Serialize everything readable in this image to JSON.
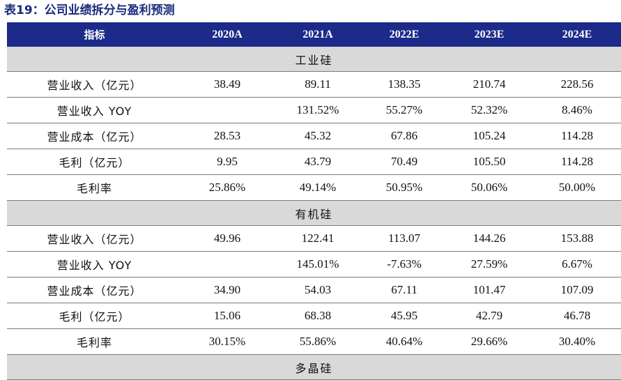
{
  "title": "表19：公司业绩拆分与盈利预测",
  "header": [
    "指标",
    "2020A",
    "2021A",
    "2022E",
    "2023E",
    "2024E"
  ],
  "sections": [
    {
      "name": "工业硅",
      "rows": [
        {
          "label": "营业收入（亿元）",
          "values": [
            "38.49",
            "89.11",
            "138.35",
            "210.74",
            "228.56"
          ]
        },
        {
          "label": "营业收入 YOY",
          "values": [
            "",
            "131.52%",
            "55.27%",
            "52.32%",
            "8.46%"
          ]
        },
        {
          "label": "营业成本（亿元）",
          "values": [
            "28.53",
            "45.32",
            "67.86",
            "105.24",
            "114.28"
          ]
        },
        {
          "label": "毛利（亿元）",
          "values": [
            "9.95",
            "43.79",
            "70.49",
            "105.50",
            "114.28"
          ]
        },
        {
          "label": "毛利率",
          "values": [
            "25.86%",
            "49.14%",
            "50.95%",
            "50.06%",
            "50.00%"
          ]
        }
      ]
    },
    {
      "name": "有机硅",
      "rows": [
        {
          "label": "营业收入（亿元）",
          "values": [
            "49.96",
            "122.41",
            "113.07",
            "144.26",
            "153.88"
          ]
        },
        {
          "label": "营业收入 YOY",
          "values": [
            "",
            "145.01%",
            "-7.63%",
            "27.59%",
            "6.67%"
          ]
        },
        {
          "label": "营业成本（亿元）",
          "values": [
            "34.90",
            "54.03",
            "67.11",
            "101.47",
            "107.09"
          ]
        },
        {
          "label": "毛利（亿元）",
          "values": [
            "15.06",
            "68.38",
            "45.95",
            "42.79",
            "46.78"
          ]
        },
        {
          "label": "毛利率",
          "values": [
            "30.15%",
            "55.86%",
            "40.64%",
            "29.66%",
            "30.40%"
          ]
        }
      ]
    },
    {
      "name": "多晶硅",
      "rows": []
    }
  ]
}
